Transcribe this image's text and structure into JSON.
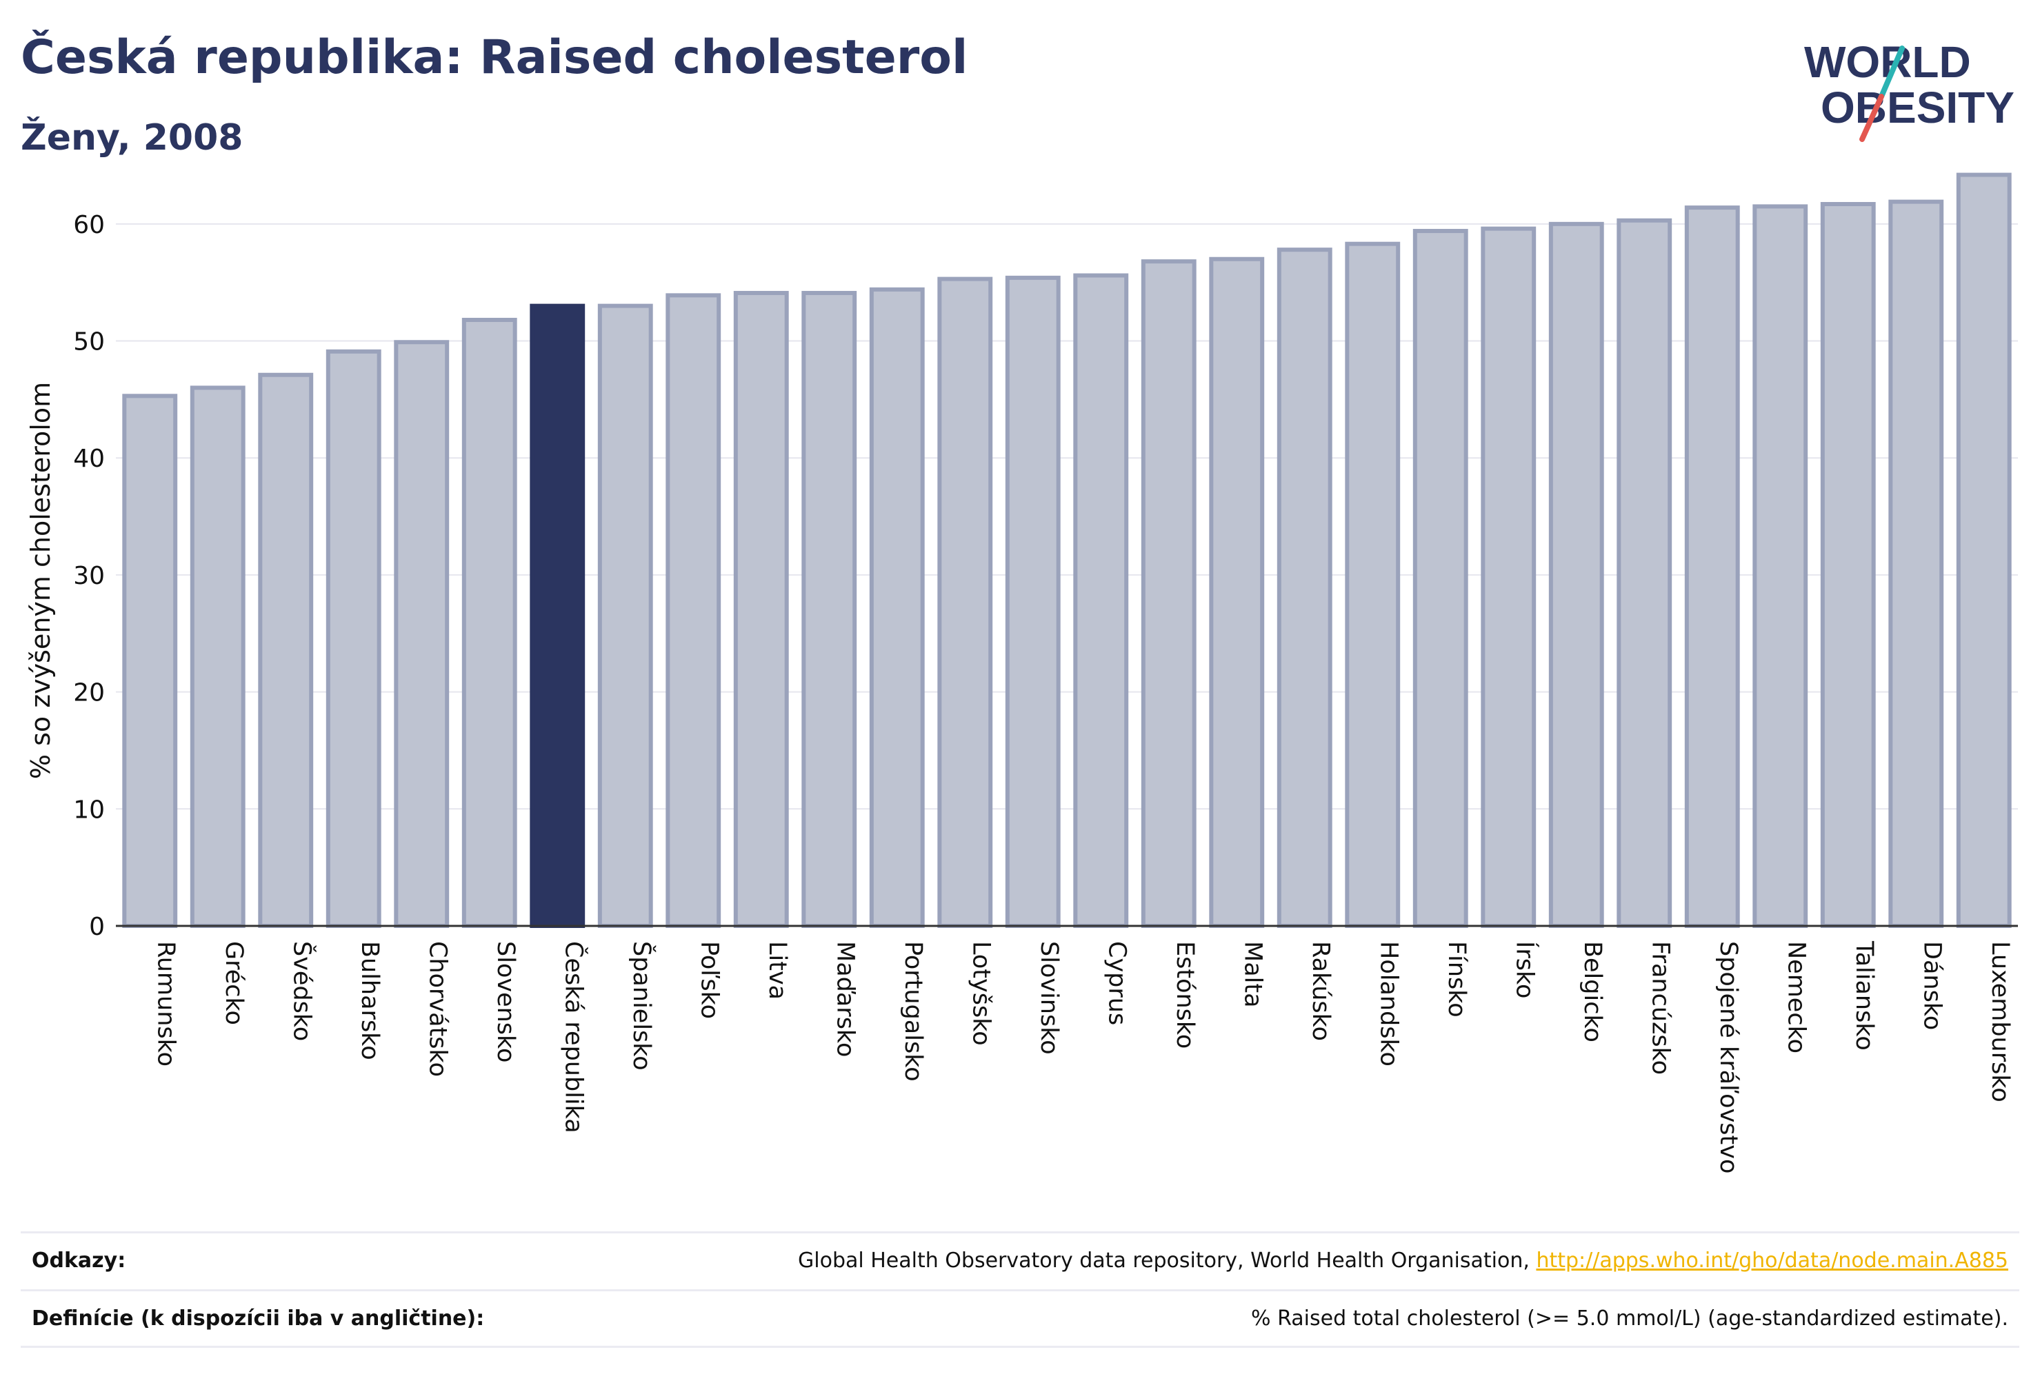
{
  "header": {
    "title": "Česká republika: Raised cholesterol",
    "subtitle": "Ženy, 2008",
    "logo_line1": "WORLD",
    "logo_line2": "OBESITY"
  },
  "colors": {
    "title": "#2b3560",
    "bar_fill": "#bec3d1",
    "bar_stroke": "#9aa2bb",
    "highlight_fill": "#2b3560",
    "grid": "#e6e6ee",
    "logo_teal": "#2ab3b3",
    "logo_red": "#e3574f",
    "link": "#f0b400"
  },
  "chart_data": {
    "type": "bar",
    "ylabel": "% so zvýšeným cholesterolom",
    "ylim": [
      0,
      65
    ],
    "yticks": [
      0,
      10,
      20,
      30,
      40,
      50,
      60
    ],
    "grid": true,
    "highlight": "Česká republika",
    "categories": [
      "Rumunsko",
      "Grécko",
      "Švédsko",
      "Bulharsko",
      "Chorvátsko",
      "Slovensko",
      "Česká republika",
      "Španielsko",
      "Poľsko",
      "Litva",
      "Maďarsko",
      "Portugalsko",
      "Lotyšsko",
      "Slovinsko",
      "Cyprus",
      "Estónsko",
      "Malta",
      "Rakúsko",
      "Holandsko",
      "Fínsko",
      "Írsko",
      "Belgicko",
      "Francúzsko",
      "Spojené kráľovstvo",
      "Nemecko",
      "Taliansko",
      "Dánsko",
      "Luxembursko"
    ],
    "values": [
      45.3,
      46.0,
      47.1,
      49.1,
      49.9,
      51.8,
      53.0,
      53.0,
      53.9,
      54.1,
      54.1,
      54.4,
      55.3,
      55.4,
      55.6,
      56.8,
      57.0,
      57.8,
      58.3,
      59.4,
      59.6,
      60.0,
      60.3,
      61.4,
      61.5,
      61.7,
      61.9,
      64.2
    ]
  },
  "footer": {
    "references_label": "Odkazy:",
    "references_text": "Global Health Observatory data repository, World Health Organisation, ",
    "references_link": "http://apps.who.int/gho/data/node.main.A885",
    "definitions_label": "Definície (k dispozícii iba v angličtine):",
    "definitions_text": "% Raised total cholesterol (>= 5.0 mmol/L) (age-standardized estimate)."
  }
}
